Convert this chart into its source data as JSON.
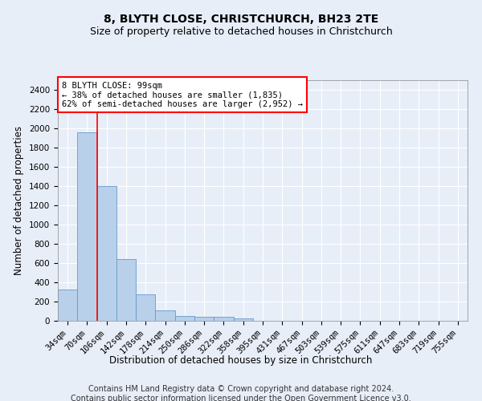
{
  "title1": "8, BLYTH CLOSE, CHRISTCHURCH, BH23 2TE",
  "title2": "Size of property relative to detached houses in Christchurch",
  "xlabel": "Distribution of detached houses by size in Christchurch",
  "ylabel": "Number of detached properties",
  "footer1": "Contains HM Land Registry data © Crown copyright and database right 2024.",
  "footer2": "Contains public sector information licensed under the Open Government Licence v3.0.",
  "annotation_line1": "8 BLYTH CLOSE: 99sqm",
  "annotation_line2": "← 38% of detached houses are smaller (1,835)",
  "annotation_line3": "62% of semi-detached houses are larger (2,952) →",
  "bar_color": "#b8d0ea",
  "bar_edge_color": "#6699cc",
  "vline_color": "red",
  "vline_x_index": 2,
  "categories": [
    "34sqm",
    "70sqm",
    "106sqm",
    "142sqm",
    "178sqm",
    "214sqm",
    "250sqm",
    "286sqm",
    "322sqm",
    "358sqm",
    "395sqm",
    "431sqm",
    "467sqm",
    "503sqm",
    "539sqm",
    "575sqm",
    "611sqm",
    "647sqm",
    "683sqm",
    "719sqm",
    "755sqm"
  ],
  "values": [
    325,
    1960,
    1400,
    640,
    275,
    105,
    50,
    45,
    40,
    25,
    0,
    0,
    0,
    0,
    0,
    0,
    0,
    0,
    0,
    0,
    0
  ],
  "ylim": [
    0,
    2500
  ],
  "yticks": [
    0,
    200,
    400,
    600,
    800,
    1000,
    1200,
    1400,
    1600,
    1800,
    2000,
    2200,
    2400
  ],
  "background_color": "#e8eef8",
  "plot_bg_color": "#e8eef8",
  "annotation_box_color": "white",
  "annotation_box_edge": "red",
  "title1_fontsize": 10,
  "title2_fontsize": 9,
  "xlabel_fontsize": 8.5,
  "ylabel_fontsize": 8.5,
  "tick_fontsize": 7.5,
  "footer_fontsize": 7,
  "ann_fontsize": 7.5
}
